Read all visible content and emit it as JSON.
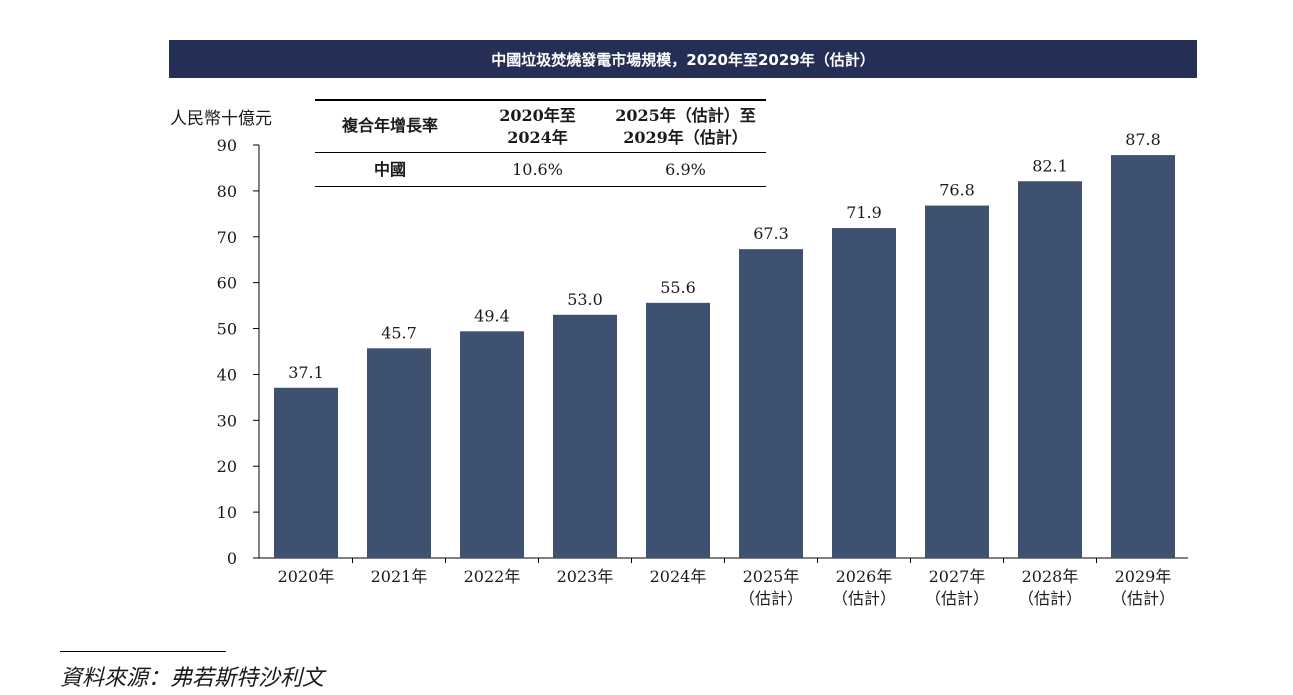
{
  "header": {
    "title": "中國垃圾焚燒發電市場規模，2020年至2029年（估計）"
  },
  "chart_data": {
    "type": "bar",
    "title": "中國垃圾焚燒發電市場規模，2020年至2029年（估計）",
    "ylabel": "人民幣十億元",
    "xlabel": "",
    "ylim": [
      0,
      90
    ],
    "yticks": [
      0,
      10,
      20,
      30,
      40,
      50,
      60,
      70,
      80,
      90
    ],
    "categories": [
      [
        "2020年"
      ],
      [
        "2021年"
      ],
      [
        "2022年"
      ],
      [
        "2023年"
      ],
      [
        "2024年"
      ],
      [
        "2025年",
        "（估計）"
      ],
      [
        "2026年",
        "（估計）"
      ],
      [
        "2027年",
        "（估計）"
      ],
      [
        "2028年",
        "（估計）"
      ],
      [
        "2029年",
        "（估計）"
      ]
    ],
    "values": [
      37.1,
      45.7,
      49.4,
      53.0,
      55.6,
      67.3,
      71.9,
      76.8,
      82.1,
      87.8
    ],
    "value_labels": [
      "37.1",
      "45.7",
      "49.4",
      "53.0",
      "55.6",
      "67.3",
      "71.9",
      "76.8",
      "82.1",
      "87.8"
    ],
    "grid": false,
    "bar_color": "#3f5170"
  },
  "cagr_table": {
    "col1_header": "複合年增長率",
    "col2_header": [
      "2020年至",
      "2024年"
    ],
    "col3_header": [
      "2025年（估計）至",
      "2029年（估計）"
    ],
    "row_label": "中國",
    "col2_value": "10.6%",
    "col3_value": "6.9%"
  },
  "source": "資料來源：弗若斯特沙利文"
}
